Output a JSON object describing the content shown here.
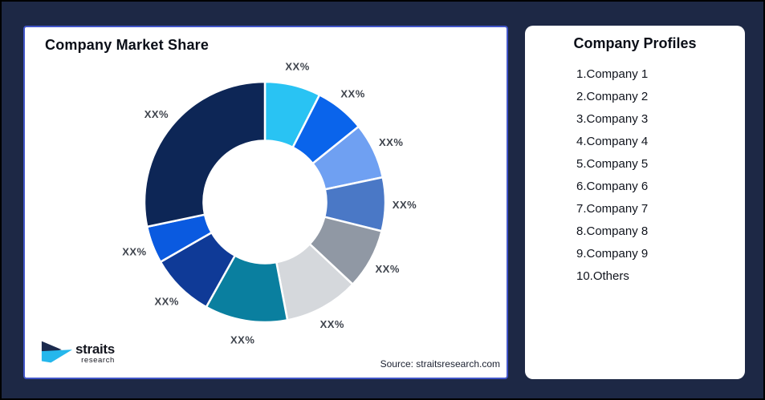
{
  "page": {
    "background_color": "#1D2845",
    "border_color": "#000000"
  },
  "market_share_card": {
    "title": "Company Market Share",
    "source": "Source: straitsresearch.com",
    "border_color": "#4155C8"
  },
  "profiles_card": {
    "title": "Company Profiles",
    "items": [
      "1.Company 1",
      "2.Company 2",
      "3.Company 3",
      "4.Company 4",
      "5.Company 5",
      "6.Company 6",
      "7.Company 7",
      "8.Company 8",
      "9.Company 9",
      "10.Others"
    ]
  },
  "logo": {
    "text": "straits",
    "subtext": "research",
    "navy_color": "#1B2B4E",
    "cyan_color": "#25B7EC"
  },
  "chart_data": {
    "type": "pie",
    "variant": "donut",
    "title": "Company Market Share",
    "legend_position": "none",
    "start_angle_deg": 0,
    "direction": "clockwise",
    "inner_radius_ratio": 0.51,
    "note": "All slice data labels are shown as the placeholder text XX%; values below are percentages estimated from arc angles.",
    "label_color": "#3E434C",
    "segments": [
      {
        "name": "Company 1",
        "label": "XX%",
        "value_pct_est": 7.5,
        "color": "#29C3F3"
      },
      {
        "name": "Company 2",
        "label": "XX%",
        "value_pct_est": 6.7,
        "color": "#0A64EB"
      },
      {
        "name": "Company 3",
        "label": "XX%",
        "value_pct_est": 7.5,
        "color": "#6FA0F2"
      },
      {
        "name": "Company 4",
        "label": "XX%",
        "value_pct_est": 7.2,
        "color": "#4A78C6"
      },
      {
        "name": "Company 5",
        "label": "XX%",
        "value_pct_est": 8.1,
        "color": "#9098A4"
      },
      {
        "name": "Company 6",
        "label": "XX%",
        "value_pct_est": 10.0,
        "color": "#D5D8DC"
      },
      {
        "name": "Company 7",
        "label": "XX%",
        "value_pct_est": 11.1,
        "color": "#0A7F9F"
      },
      {
        "name": "Company 8",
        "label": "XX%",
        "value_pct_est": 8.6,
        "color": "#0F3A97"
      },
      {
        "name": "Company 9",
        "label": "XX%",
        "value_pct_est": 5.0,
        "color": "#0A5AE0"
      },
      {
        "name": "Others",
        "label": "XX%",
        "value_pct_est": 28.3,
        "color": "#0D2656"
      }
    ]
  }
}
